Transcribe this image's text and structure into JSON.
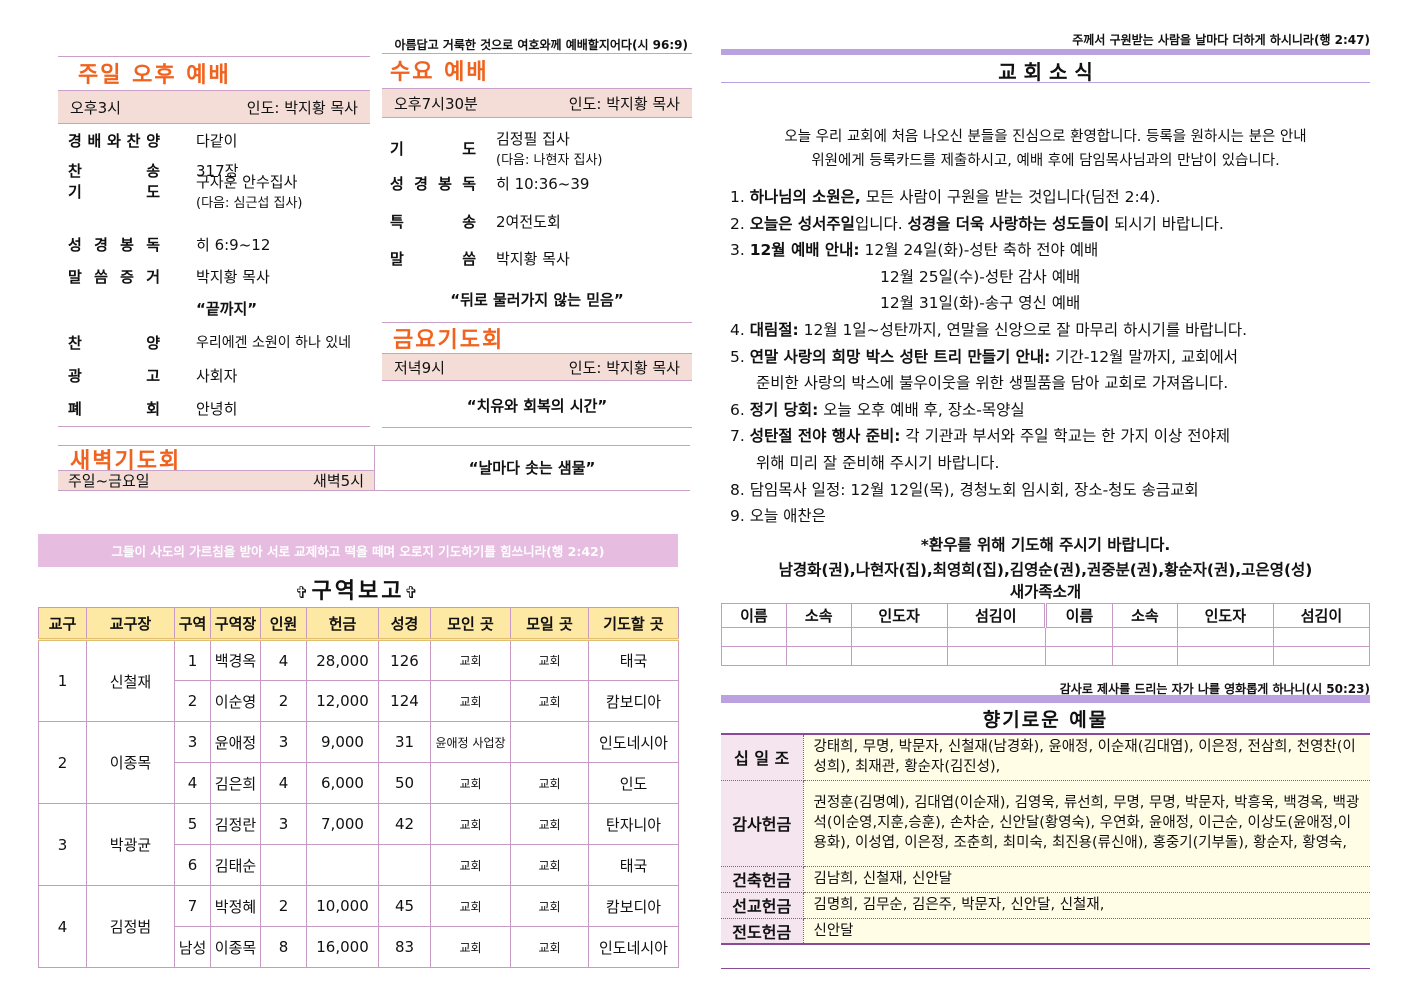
{
  "left": {
    "verse_top": "아름답고 거룩한 것으로 여호와께 예배할지어다(시 96:9)",
    "sunday": {
      "title": "주일 오후 예배",
      "time": "오후3시",
      "leader": "인도: 박지황 목사",
      "rows": [
        {
          "label": "경배와찬양",
          "value": "다같이"
        },
        {
          "label": "찬 송",
          "value": "317장"
        },
        {
          "label": "기 도",
          "value": "구자훈 안수집사",
          "sub": "(다음: 심근섭 집사)"
        },
        {
          "label": "성경봉독",
          "value": "히 6:9~12"
        },
        {
          "label": "말씀증거",
          "value": "박지황 목사"
        },
        {
          "label": "",
          "value": "“끝까지”"
        },
        {
          "label": "찬 양",
          "value": "우리에겐 소원이 하나 있네"
        },
        {
          "label": "광 고",
          "value": "사회자"
        },
        {
          "label": "폐 회",
          "value": "안녕히"
        }
      ]
    },
    "wednesday": {
      "title": "수요 예배",
      "time": "오후7시30분",
      "leader": "인도: 박지황 목사",
      "rows": [
        {
          "label": "기 도",
          "value": "김정필 집사",
          "sub": "(다음: 나현자 집사)"
        },
        {
          "label": "성경봉독",
          "value": "히 10:36~39"
        },
        {
          "label": "특 송",
          "value": "2여전도회"
        },
        {
          "label": "말 씀",
          "value": "박지황 목사"
        }
      ],
      "sermon": "“뒤로 물러가지 않는 믿음”"
    },
    "friday": {
      "title": "금요기도회",
      "time": "저녁9시",
      "leader": "인도: 박지황 목사",
      "sermon": "“치유와 회복의 시간”"
    },
    "dawn": {
      "title": "새벽기도회",
      "days": "주일~금요일",
      "time": "새벽5시",
      "sermon": "“날마다 솟는 샘물”"
    },
    "verse_banner": "그들이 사도의 가르침을 받아 서로 교제하고 떡을 떼며 오로지 기도하기를 힘쓰니라(행 2:42)",
    "report": {
      "title": "구역보고",
      "cross": "✞",
      "headers": [
        "교구",
        "교구장",
        "구역",
        "구역장",
        "인원",
        "헌금",
        "성경",
        "모인 곳",
        "모일 곳",
        "기도할 곳"
      ],
      "groups": [
        {
          "parish": "1",
          "leader": "신철재",
          "rows": [
            [
              "1",
              "백경옥",
              "4",
              "28,000",
              "126",
              "교회",
              "교회",
              "태국"
            ],
            [
              "2",
              "이순영",
              "2",
              "12,000",
              "124",
              "교회",
              "교회",
              "캄보디아"
            ]
          ]
        },
        {
          "parish": "2",
          "leader": "이종목",
          "rows": [
            [
              "3",
              "윤애정",
              "3",
              "9,000",
              "31",
              "윤애정 사업장",
              "",
              "인도네시아"
            ],
            [
              "4",
              "김은희",
              "4",
              "6,000",
              "50",
              "교회",
              "교회",
              "인도"
            ]
          ]
        },
        {
          "parish": "3",
          "leader": "박광균",
          "rows": [
            [
              "5",
              "김정란",
              "3",
              "7,000",
              "42",
              "교회",
              "교회",
              "탄자니아"
            ],
            [
              "6",
              "김태순",
              "",
              "",
              "",
              "교회",
              "교회",
              "태국"
            ]
          ]
        },
        {
          "parish": "4",
          "leader": "김정범",
          "rows": [
            [
              "7",
              "박정혜",
              "2",
              "10,000",
              "45",
              "교회",
              "교회",
              "캄보디아"
            ],
            [
              "남성",
              "이종목",
              "8",
              "16,000",
              "83",
              "교회",
              "교회",
              "인도네시아"
            ]
          ]
        }
      ]
    }
  },
  "right": {
    "verse_top": "주께서 구원받는 사람을 날마다 더하게 하시니라(행 2:47)",
    "news_title": "교 회 소 식",
    "welcome": [
      "오늘 우리 교회에 처음 나오신 분들을 진심으로 환영합니다. 등록을 원하시는 분은 안내",
      "위원에게 등록카드를 제출하시고, 예배 후에 담임목사님과의 만남이 있습니다."
    ],
    "items": [
      {
        "n": "1.",
        "b": "하나님의 소원은,",
        "t": " 모든 사람이 구원을 받는 것입니다(딤전 2:4)."
      },
      {
        "n": "2.",
        "b": "오늘은 성서주일",
        "t": "입니다. ",
        "b2": "성경을 더욱 사랑하는 성도들이",
        "t2": " 되시기 바랍니다."
      },
      {
        "n": "3.",
        "b": "12월 예배 안내:",
        "t": " 12월 24일(화)-성탄 축하 전야 예배",
        "extra": [
          "12월 25일(수)-성탄 감사 예배",
          "12월 31일(화)-송구 영신 예배"
        ]
      },
      {
        "n": "4.",
        "b": "대림절:",
        "t": " 12월 1일~성탄까지, 연말을 신앙으로 잘 마무리 하시기를 바랍니다."
      },
      {
        "n": "5.",
        "b": "연말 사랑의 희망 박스 성탄 트리 만들기 안내:",
        "t": " 기간-12월 말까지, 교회에서",
        "cont": "준비한 사랑의 박스에 불우이웃을 위한 생필품을 담아 교회로 가져옵니다."
      },
      {
        "n": "6.",
        "b": "정기 당회:",
        "t": " 오늘 오후 예배 후, 장소-목양실"
      },
      {
        "n": "7.",
        "b": "성탄절 전야 행사 준비:",
        "t": " 각 기관과 부서와 주일 학교는 한 가지 이상 전야제",
        "cont": "위해 미리 잘 준비해 주시기 바랍니다."
      },
      {
        "n": "8.",
        "b": "",
        "t": "담임목사 일정: 12월 12일(목), 경청노회 임시회, 장소-청도 송금교회"
      },
      {
        "n": "9.",
        "b": "",
        "t": "오늘 애찬은"
      }
    ],
    "prayer_title": "*환우를 위해 기도해 주시기 바랍니다.",
    "prayer_names": "남경화(권),나현자(집),최영희(집),김영순(권),권중분(권),황순자(권),고은영(성)",
    "newfamily": {
      "title": "새가족소개",
      "headers": [
        "이름",
        "소속",
        "인도자",
        "섬김이",
        "이름",
        "소속",
        "인도자",
        "섬김이"
      ]
    },
    "verse_offering": "감사로 제사를 드리는 자가 나를 영화롭게 하나니(시 50:23)",
    "offering_title": "향기로운 예물",
    "offerings": [
      {
        "label": "십 일 조",
        "names": "강태희, 무명, 박문자, 신철재(남경화), 윤애정, 이순재(김대엽), 이은정, 전삼희, 천영찬(이성희), 최재관, 황순자(김진성),"
      },
      {
        "label": "감사헌금",
        "names": "권정훈(김명예), 김대엽(이순재), 김영욱, 류선희, 무명, 무명, 박문자, 박흥욱, 백경옥, 백광석(이순영,지훈,승훈), 손차순, 신안달(황영숙), 우연화, 윤애정, 이근순, 이상도(윤애정,이용화), 이성엽, 이은정, 조춘희, 최미숙, 최진용(류신애), 홍중기(기부돌), 황순자, 황영숙,"
      },
      {
        "label": "건축헌금",
        "names": "김남희, 신철재, 신안달"
      },
      {
        "label": "선교헌금",
        "names": "김명희, 김무순, 김은주, 박문자, 신안달, 신철재,"
      },
      {
        "label": "전도헌금",
        "names": "신안달"
      }
    ]
  }
}
